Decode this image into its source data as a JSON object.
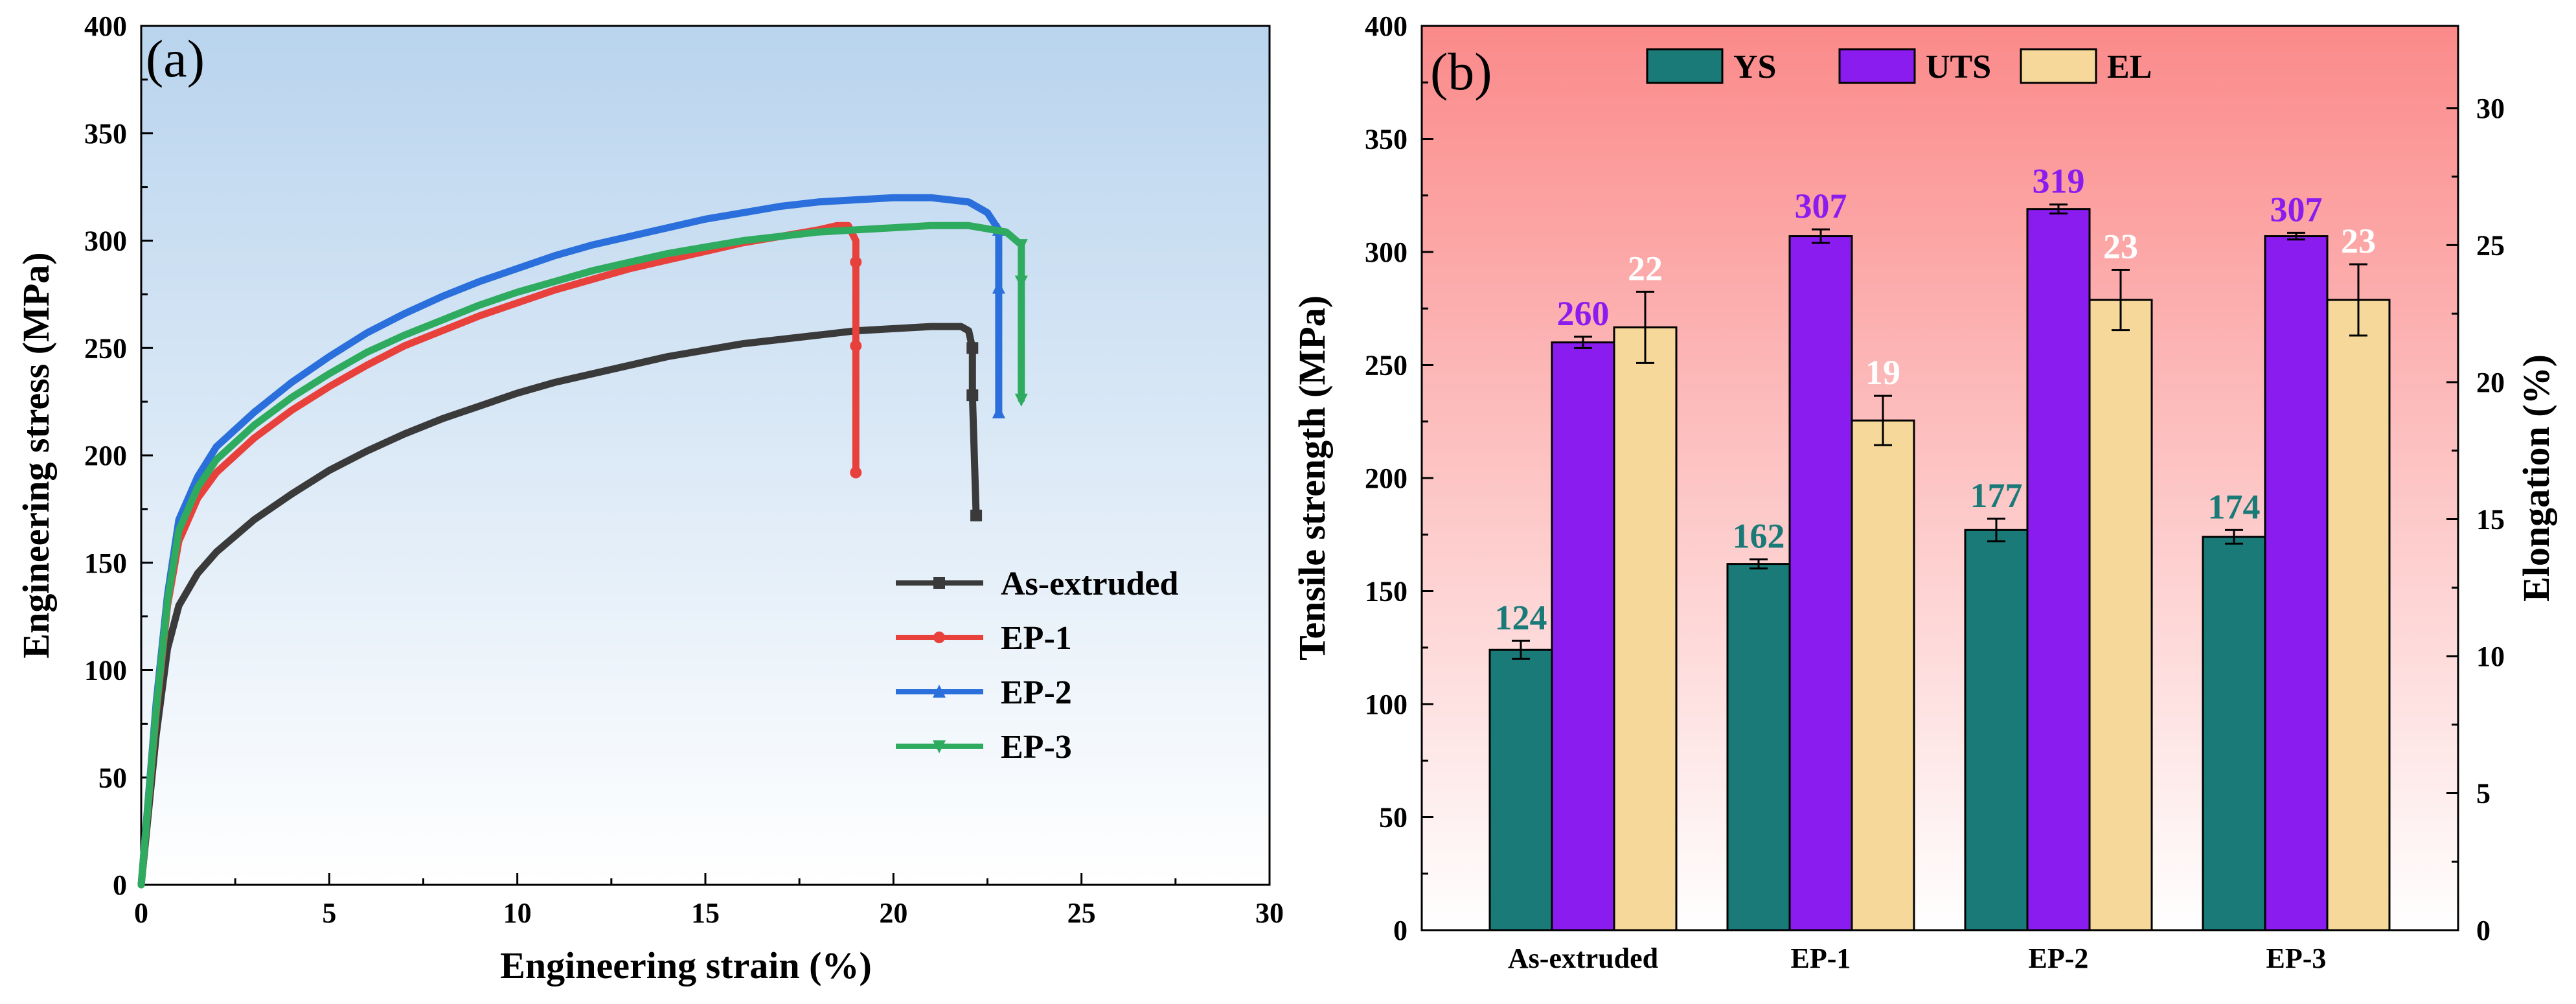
{
  "chart_data": [
    {
      "type": "line",
      "panel_label": "(a)",
      "xlabel": "Engineering strain (%)",
      "ylabel": "Engineering stress (MPa)",
      "xlim": [
        0,
        30
      ],
      "ylim": [
        0,
        400
      ],
      "xticks": [
        "0",
        "5",
        "10",
        "15",
        "20",
        "25",
        "30"
      ],
      "yticks": [
        "0",
        "50",
        "100",
        "150",
        "200",
        "250",
        "300",
        "350",
        "400"
      ],
      "legend_position": "lower-right",
      "series": [
        {
          "name": "As-extruded",
          "color": "#3a3a3a",
          "marker": "square",
          "points": [
            [
              0,
              0
            ],
            [
              0.4,
              70
            ],
            [
              0.7,
              110
            ],
            [
              1.0,
              130
            ],
            [
              1.5,
              145
            ],
            [
              2,
              155
            ],
            [
              3,
              170
            ],
            [
              4,
              182
            ],
            [
              5,
              193
            ],
            [
              6,
              202
            ],
            [
              7,
              210
            ],
            [
              8,
              217
            ],
            [
              9,
              223
            ],
            [
              10,
              229
            ],
            [
              11,
              234
            ],
            [
              12,
              238
            ],
            [
              13,
              242
            ],
            [
              14,
              246
            ],
            [
              15,
              249
            ],
            [
              16,
              252
            ],
            [
              17,
              254
            ],
            [
              18,
              256
            ],
            [
              19,
              258
            ],
            [
              20,
              259
            ],
            [
              21,
              260
            ],
            [
              21.8,
              260
            ],
            [
              22.0,
              258
            ],
            [
              22.1,
              250
            ],
            [
              22.1,
              228
            ],
            [
              22.2,
              172
            ]
          ]
        },
        {
          "name": "EP-1",
          "color": "#e8413c",
          "marker": "circle",
          "points": [
            [
              0,
              0
            ],
            [
              0.4,
              80
            ],
            [
              0.7,
              130
            ],
            [
              1.0,
              160
            ],
            [
              1.5,
              180
            ],
            [
              2,
              192
            ],
            [
              3,
              208
            ],
            [
              4,
              221
            ],
            [
              5,
              232
            ],
            [
              6,
              242
            ],
            [
              7,
              251
            ],
            [
              8,
              258
            ],
            [
              9,
              265
            ],
            [
              10,
              271
            ],
            [
              11,
              277
            ],
            [
              12,
              282
            ],
            [
              13,
              287
            ],
            [
              14,
              291
            ],
            [
              15,
              295
            ],
            [
              16,
              299
            ],
            [
              17,
              302
            ],
            [
              18,
              305
            ],
            [
              18.5,
              307
            ],
            [
              18.8,
              307
            ],
            [
              19.0,
              300
            ],
            [
              19.0,
              290
            ],
            [
              19.0,
              251
            ],
            [
              19.0,
              192
            ]
          ]
        },
        {
          "name": "EP-2",
          "color": "#2a6fdb",
          "marker": "triangle-up",
          "points": [
            [
              0,
              0
            ],
            [
              0.4,
              85
            ],
            [
              0.7,
              135
            ],
            [
              1.0,
              170
            ],
            [
              1.5,
              190
            ],
            [
              2,
              204
            ],
            [
              3,
              220
            ],
            [
              4,
              234
            ],
            [
              5,
              246
            ],
            [
              6,
              257
            ],
            [
              7,
              266
            ],
            [
              8,
              274
            ],
            [
              9,
              281
            ],
            [
              10,
              287
            ],
            [
              11,
              293
            ],
            [
              12,
              298
            ],
            [
              13,
              302
            ],
            [
              14,
              306
            ],
            [
              15,
              310
            ],
            [
              16,
              313
            ],
            [
              17,
              316
            ],
            [
              18,
              318
            ],
            [
              19,
              319
            ],
            [
              20,
              320
            ],
            [
              21,
              320
            ],
            [
              22,
              318
            ],
            [
              22.5,
              313
            ],
            [
              22.8,
              305
            ],
            [
              22.8,
              278
            ],
            [
              22.8,
              220
            ]
          ]
        },
        {
          "name": "EP-3",
          "color": "#2eab5e",
          "marker": "triangle-down",
          "points": [
            [
              0,
              0
            ],
            [
              0.4,
              82
            ],
            [
              0.7,
              132
            ],
            [
              1.0,
              165
            ],
            [
              1.5,
              185
            ],
            [
              2,
              198
            ],
            [
              3,
              214
            ],
            [
              4,
              227
            ],
            [
              5,
              238
            ],
            [
              6,
              248
            ],
            [
              7,
              256
            ],
            [
              8,
              263
            ],
            [
              9,
              270
            ],
            [
              10,
              276
            ],
            [
              11,
              281
            ],
            [
              12,
              286
            ],
            [
              13,
              290
            ],
            [
              14,
              294
            ],
            [
              15,
              297
            ],
            [
              16,
              300
            ],
            [
              17,
              302
            ],
            [
              18,
              304
            ],
            [
              19,
              305
            ],
            [
              20,
              306
            ],
            [
              21,
              307
            ],
            [
              22,
              307
            ],
            [
              23,
              304
            ],
            [
              23.4,
              298
            ],
            [
              23.4,
              281
            ],
            [
              23.4,
              226
            ]
          ]
        }
      ]
    },
    {
      "type": "bar",
      "panel_label": "(b)",
      "xlabel": "",
      "ylabel": "Tensile strength (MPa)",
      "y2label": "Elongation (%)",
      "categories": [
        "As-extruded",
        "EP-1",
        "EP-2",
        "EP-3"
      ],
      "ylim": [
        0,
        400
      ],
      "y2lim": [
        0,
        33
      ],
      "yticks": [
        "0",
        "50",
        "100",
        "150",
        "200",
        "250",
        "300",
        "350",
        "400"
      ],
      "y2ticks": [
        "0",
        "5",
        "10",
        "15",
        "20",
        "25",
        "30"
      ],
      "legend_position": "top",
      "series": [
        {
          "name": "YS",
          "axis": "left",
          "color": "#1a7a78",
          "label_color": "#1a7a78",
          "values": [
            124,
            162,
            177,
            174
          ],
          "errors": [
            4,
            2,
            5,
            3
          ],
          "labels": [
            "124",
            "162",
            "177",
            "174"
          ]
        },
        {
          "name": "UTS",
          "axis": "left",
          "color": "#8b1cf0",
          "label_color": "#8b1cf0",
          "values": [
            260,
            307,
            319,
            307
          ],
          "errors": [
            2.5,
            3,
            2,
            1.5
          ],
          "labels": [
            "260",
            "307",
            "319",
            "307"
          ]
        },
        {
          "name": "EL",
          "axis": "right",
          "color": "#f5d89a",
          "label_color": "#ffffff",
          "values": [
            22,
            18.6,
            23,
            23
          ],
          "errors": [
            1.3,
            0.9,
            1.1,
            1.3
          ],
          "labels": [
            "22",
            "19",
            "23",
            "23"
          ]
        }
      ]
    }
  ]
}
